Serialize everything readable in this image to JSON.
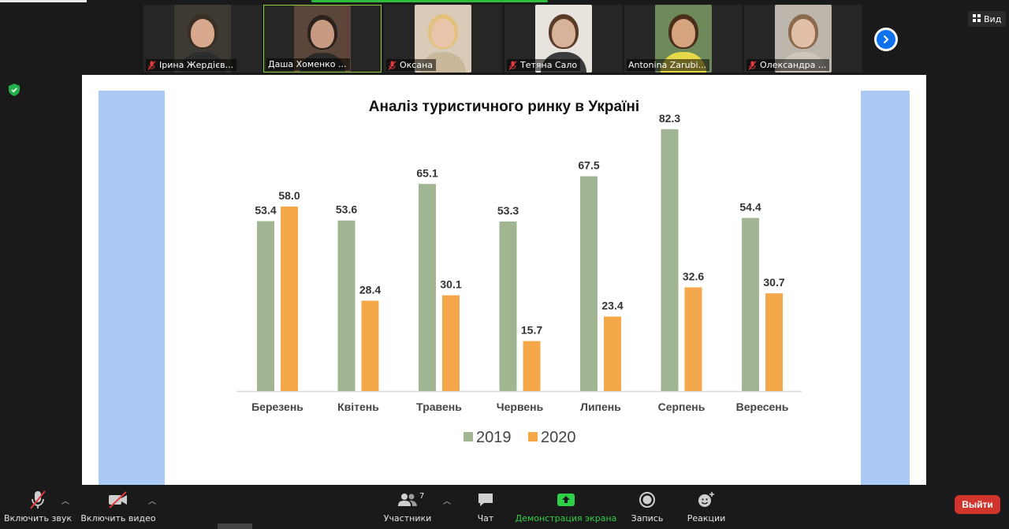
{
  "participants": [
    {
      "name": "Ірина Жердієв...",
      "muted": true,
      "bg": "#3c3a33",
      "skin": "#d8a98c",
      "hair": "#3a2d24",
      "shirt": "#2d2d2d"
    },
    {
      "name": "Даша Хоменко ...",
      "muted": false,
      "bg": "#5b4639",
      "skin": "#c89a82",
      "hair": "#2b221d",
      "shirt": "#2a2a2a",
      "active": true
    },
    {
      "name": "Оксана",
      "muted": true,
      "bg": "#d9cbb8",
      "skin": "#e9c4ab",
      "hair": "#e2c27a",
      "shirt": "#c9b79c"
    },
    {
      "name": "Тетяна Сало",
      "muted": true,
      "bg": "#e8e4dd",
      "skin": "#d8b39a",
      "hair": "#5a3b28",
      "shirt": "#3b3b3b"
    },
    {
      "name": "Antonina Zarubi...",
      "muted": false,
      "bg": "#6f8a5a",
      "skin": "#d6a57f",
      "hair": "#4a2e1c",
      "shirt": "#e7d84a"
    },
    {
      "name": "Олександра ...",
      "muted": true,
      "bg": "#bdb6ad",
      "skin": "#e2c0a8",
      "hair": "#8b6a4b",
      "shirt": "#cfc6bb"
    }
  ],
  "view_label": "Вид",
  "chart_data": {
    "type": "bar",
    "title": "Аналіз туристичного ринку в Україні",
    "categories": [
      "Березень",
      "Квітень",
      "Травень",
      "Червень",
      "Липень",
      "Серпень",
      "Вересень"
    ],
    "series": [
      {
        "name": "2019",
        "color": "#a1b592",
        "values": [
          53.4,
          53.6,
          65.1,
          53.3,
          67.5,
          82.3,
          54.4
        ]
      },
      {
        "name": "2020",
        "color": "#f4a84a",
        "values": [
          58.0,
          28.4,
          30.1,
          15.7,
          23.4,
          32.6,
          30.7
        ]
      }
    ],
    "ylim": [
      0,
      85
    ],
    "grid": false,
    "legend": "bottom-center"
  },
  "toolbar": {
    "audio_label": "Включить звук",
    "video_label": "Включить видео",
    "participants_label": "Участники",
    "participants_count": "7",
    "chat_label": "Чат",
    "share_label": "Демонстрация экрана",
    "record_label": "Запись",
    "reactions_label": "Реакции",
    "leave_label": "Выйти"
  },
  "colors": {
    "accent_blue": "#0e72ed",
    "share_green": "#2fd047",
    "leave_red": "#d0342c",
    "mute_red": "#e0393e"
  }
}
